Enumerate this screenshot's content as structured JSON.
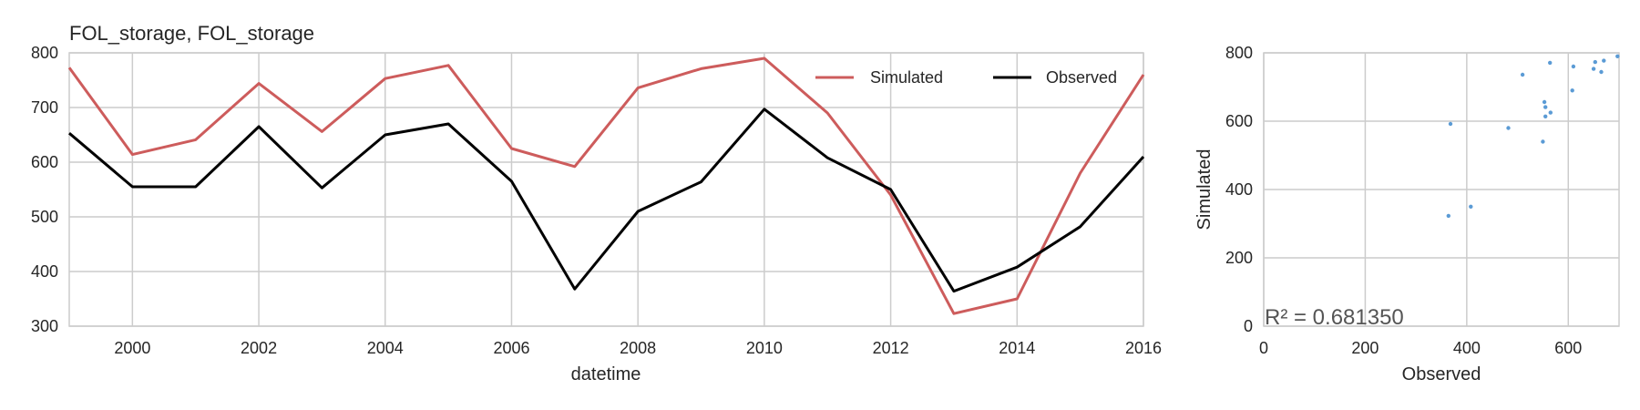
{
  "chart_data": [
    {
      "type": "line",
      "title": "FOL_storage, FOL_storage",
      "xlabel": "datetime",
      "ylabel": "",
      "xlim": [
        1999,
        2016
      ],
      "ylim": [
        300,
        800
      ],
      "xticks": [
        2000,
        2002,
        2004,
        2006,
        2008,
        2010,
        2012,
        2014,
        2016
      ],
      "xtick_labels": [
        "2000",
        "2002",
        "2004",
        "2006",
        "2008",
        "2010",
        "2012",
        "2014",
        "2016"
      ],
      "yticks": [
        300,
        400,
        500,
        600,
        700,
        800
      ],
      "ytick_labels": [
        "300",
        "400",
        "500",
        "600",
        "700",
        "800"
      ],
      "grid": true,
      "legend_position": "top-right",
      "x": [
        1999,
        2000,
        2001,
        2002,
        2003,
        2004,
        2005,
        2006,
        2007,
        2008,
        2009,
        2010,
        2011,
        2012,
        2013,
        2014,
        2015,
        2016
      ],
      "series": [
        {
          "name": "Simulated",
          "color": "#cd5c5c",
          "values": [
            773,
            614,
            641,
            744,
            656,
            753,
            777,
            625,
            592,
            736,
            771,
            790,
            690,
            540,
            323,
            350,
            580,
            760
          ]
        },
        {
          "name": "Observed",
          "color": "#000000",
          "values": [
            653,
            555,
            555,
            665,
            553,
            650,
            670,
            565,
            368,
            510,
            564,
            697,
            608,
            550,
            364,
            408,
            482,
            610
          ]
        }
      ]
    },
    {
      "type": "scatter",
      "title": "",
      "xlabel": "Observed",
      "ylabel": "Simulated",
      "xlim": [
        0,
        700
      ],
      "ylim": [
        0,
        800
      ],
      "xticks": [
        0,
        200,
        400,
        600
      ],
      "xtick_labels": [
        "0",
        "200",
        "400",
        "600"
      ],
      "yticks": [
        0,
        200,
        400,
        600,
        800
      ],
      "ytick_labels": [
        "0",
        "200",
        "400",
        "600",
        "800"
      ],
      "grid": true,
      "point_color": "#5b9bd5",
      "annotation": "R² = 0.681350",
      "points": [
        [
          653,
          773
        ],
        [
          555,
          614
        ],
        [
          555,
          641
        ],
        [
          665,
          744
        ],
        [
          553,
          656
        ],
        [
          650,
          753
        ],
        [
          670,
          777
        ],
        [
          565,
          625
        ],
        [
          368,
          592
        ],
        [
          510,
          736
        ],
        [
          564,
          771
        ],
        [
          697,
          790
        ],
        [
          608,
          690
        ],
        [
          550,
          540
        ],
        [
          364,
          323
        ],
        [
          408,
          350
        ],
        [
          482,
          580
        ],
        [
          610,
          760
        ]
      ]
    }
  ]
}
